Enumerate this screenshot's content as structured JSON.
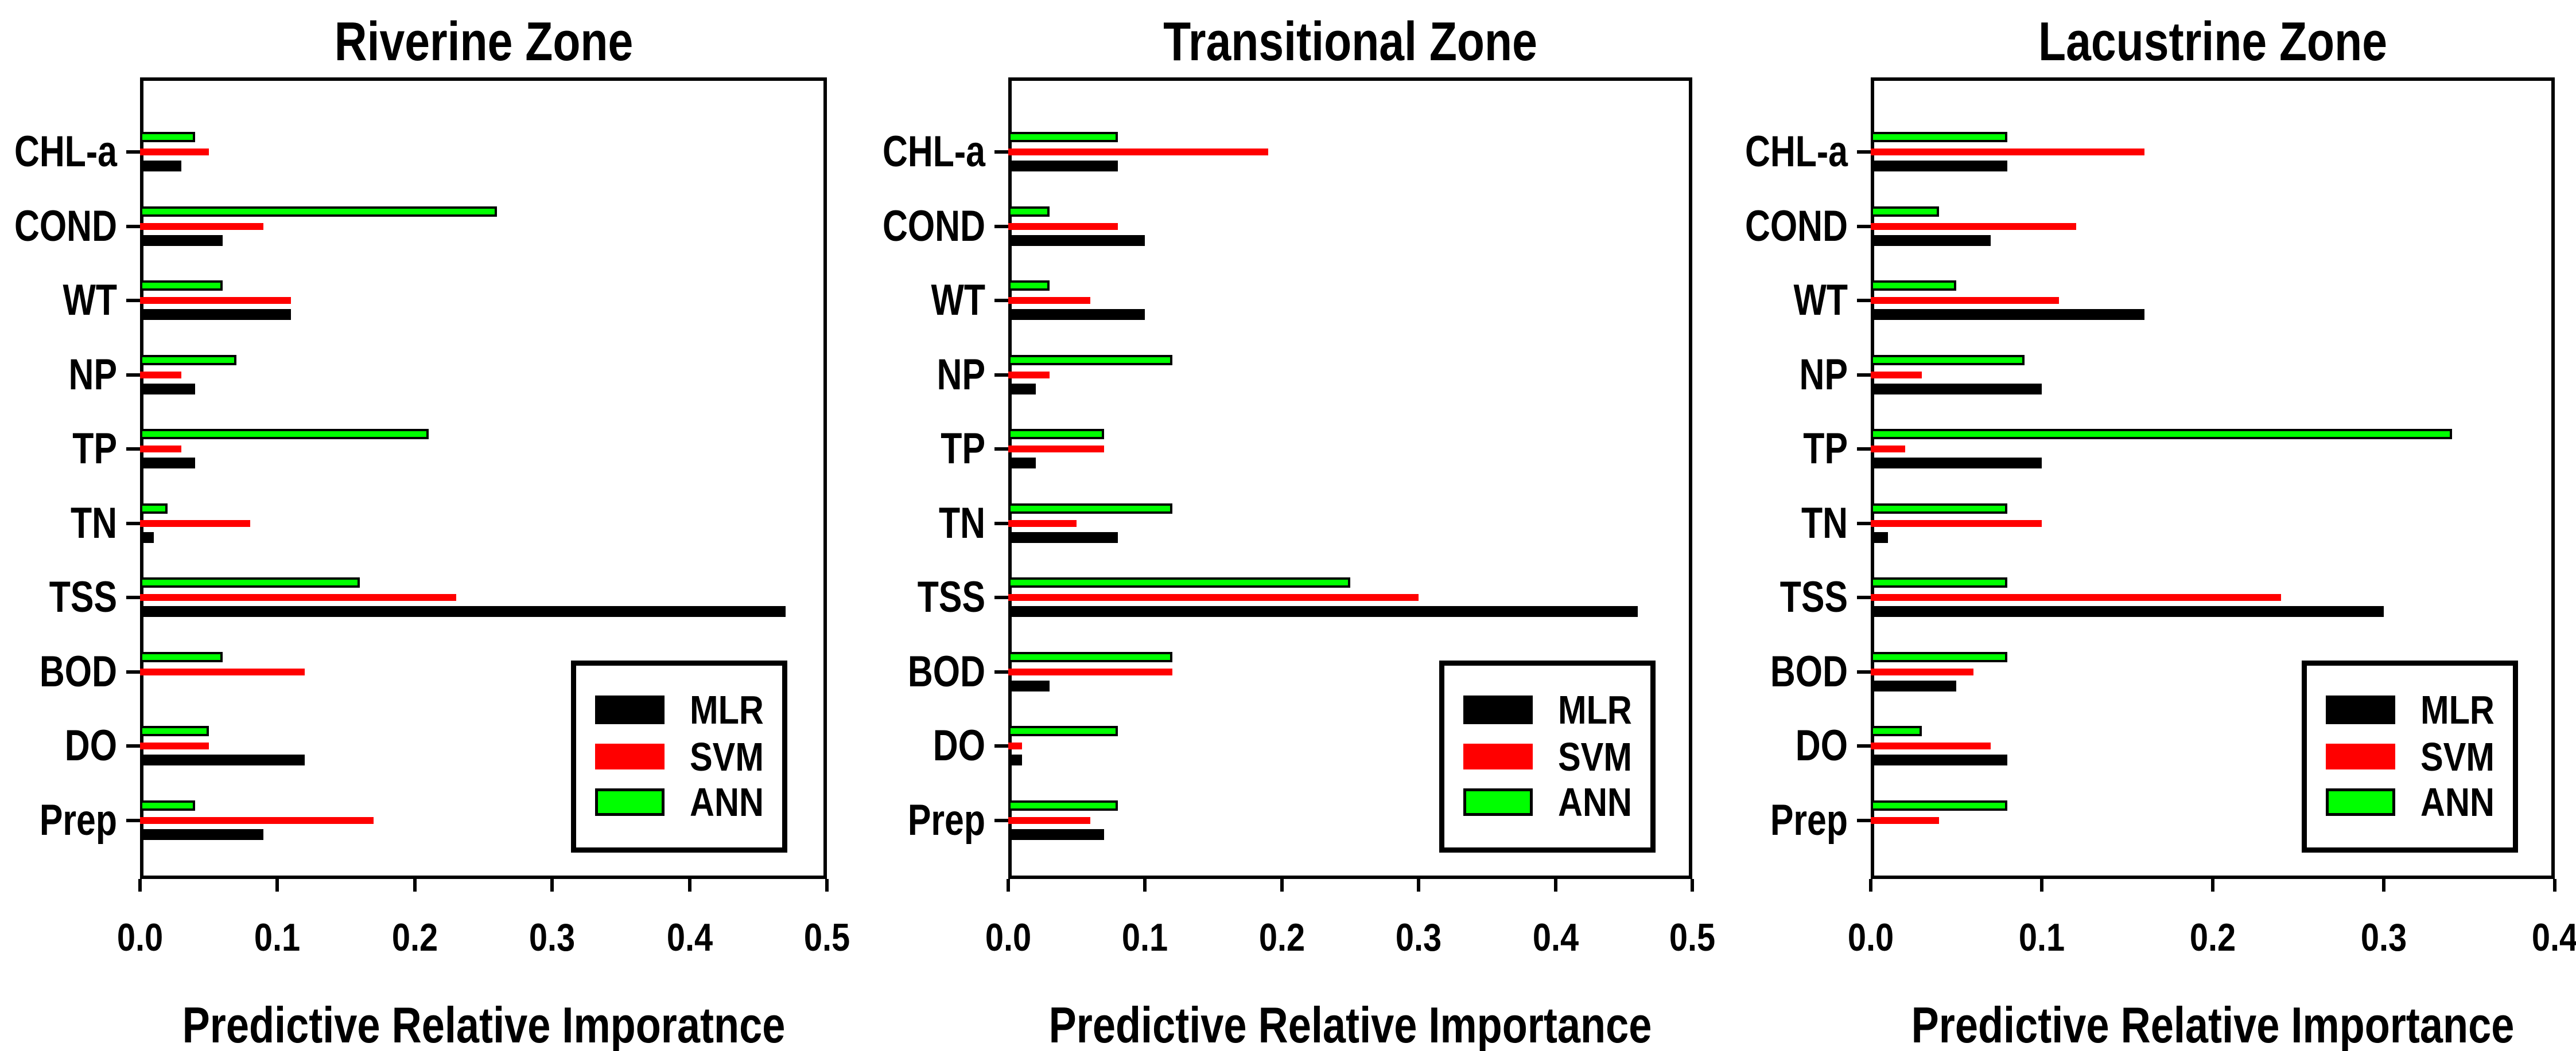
{
  "figure": {
    "background_color": "#ffffff",
    "axis_color": "#000000"
  },
  "chart_data": [
    {
      "type": "bar",
      "orientation": "horizontal",
      "title": "Riverine Zone",
      "xlabel": "Predictive Relative Imporatnce",
      "xlim": [
        0,
        0.5
      ],
      "xticks": [
        0.0,
        0.1,
        0.2,
        0.3,
        0.4,
        0.5
      ],
      "grid": false,
      "legend_position": "lower right",
      "categories": [
        "CHL-a",
        "COND",
        "WT",
        "NP",
        "TP",
        "TN",
        "TSS",
        "BOD",
        "DO",
        "Prep"
      ],
      "series": [
        {
          "name": "MLR",
          "color": "#000000",
          "outlined": false,
          "values": [
            0.03,
            0.06,
            0.11,
            0.04,
            0.04,
            0.01,
            0.47,
            0.002,
            0.12,
            0.09
          ]
        },
        {
          "name": "SVM",
          "color": "#ff0000",
          "outlined": false,
          "values": [
            0.05,
            0.09,
            0.11,
            0.03,
            0.03,
            0.08,
            0.23,
            0.12,
            0.05,
            0.17
          ]
        },
        {
          "name": "ANN",
          "color": "#00ff00",
          "outlined": true,
          "edge_color": "#000000",
          "values": [
            0.04,
            0.26,
            0.06,
            0.07,
            0.21,
            0.02,
            0.16,
            0.06,
            0.05,
            0.04
          ]
        }
      ]
    },
    {
      "type": "bar",
      "orientation": "horizontal",
      "title": "Transitional Zone",
      "xlabel": "Predictive Relative Importance",
      "xlim": [
        0,
        0.5
      ],
      "xticks": [
        0.0,
        0.1,
        0.2,
        0.3,
        0.4,
        0.5
      ],
      "grid": false,
      "legend_position": "lower right",
      "categories": [
        "CHL-a",
        "COND",
        "WT",
        "NP",
        "TP",
        "TN",
        "TSS",
        "BOD",
        "DO",
        "Prep"
      ],
      "series": [
        {
          "name": "MLR",
          "color": "#000000",
          "outlined": false,
          "values": [
            0.08,
            0.1,
            0.1,
            0.02,
            0.02,
            0.08,
            0.46,
            0.03,
            0.01,
            0.07
          ]
        },
        {
          "name": "SVM",
          "color": "#ff0000",
          "outlined": false,
          "values": [
            0.19,
            0.08,
            0.06,
            0.03,
            0.07,
            0.05,
            0.3,
            0.12,
            0.01,
            0.06
          ]
        },
        {
          "name": "ANN",
          "color": "#00ff00",
          "outlined": true,
          "edge_color": "#000000",
          "values": [
            0.08,
            0.03,
            0.03,
            0.12,
            0.07,
            0.12,
            0.25,
            0.12,
            0.08,
            0.08
          ]
        }
      ]
    },
    {
      "type": "bar",
      "orientation": "horizontal",
      "title": "Lacustrine Zone",
      "xlabel": "Predictive Relative Importance",
      "xlim": [
        0,
        0.4
      ],
      "xticks": [
        0.0,
        0.1,
        0.2,
        0.3,
        0.4
      ],
      "grid": false,
      "legend_position": "lower right",
      "categories": [
        "CHL-a",
        "COND",
        "WT",
        "NP",
        "TP",
        "TN",
        "TSS",
        "BOD",
        "DO",
        "Prep"
      ],
      "series": [
        {
          "name": "MLR",
          "color": "#000000",
          "outlined": false,
          "values": [
            0.08,
            0.07,
            0.16,
            0.1,
            0.1,
            0.01,
            0.3,
            0.05,
            0.08,
            0.002
          ]
        },
        {
          "name": "SVM",
          "color": "#ff0000",
          "outlined": false,
          "values": [
            0.16,
            0.12,
            0.11,
            0.03,
            0.02,
            0.1,
            0.24,
            0.06,
            0.07,
            0.04
          ]
        },
        {
          "name": "ANN",
          "color": "#00ff00",
          "outlined": true,
          "edge_color": "#000000",
          "values": [
            0.08,
            0.04,
            0.05,
            0.09,
            0.34,
            0.08,
            0.08,
            0.08,
            0.03,
            0.08
          ]
        }
      ]
    }
  ]
}
